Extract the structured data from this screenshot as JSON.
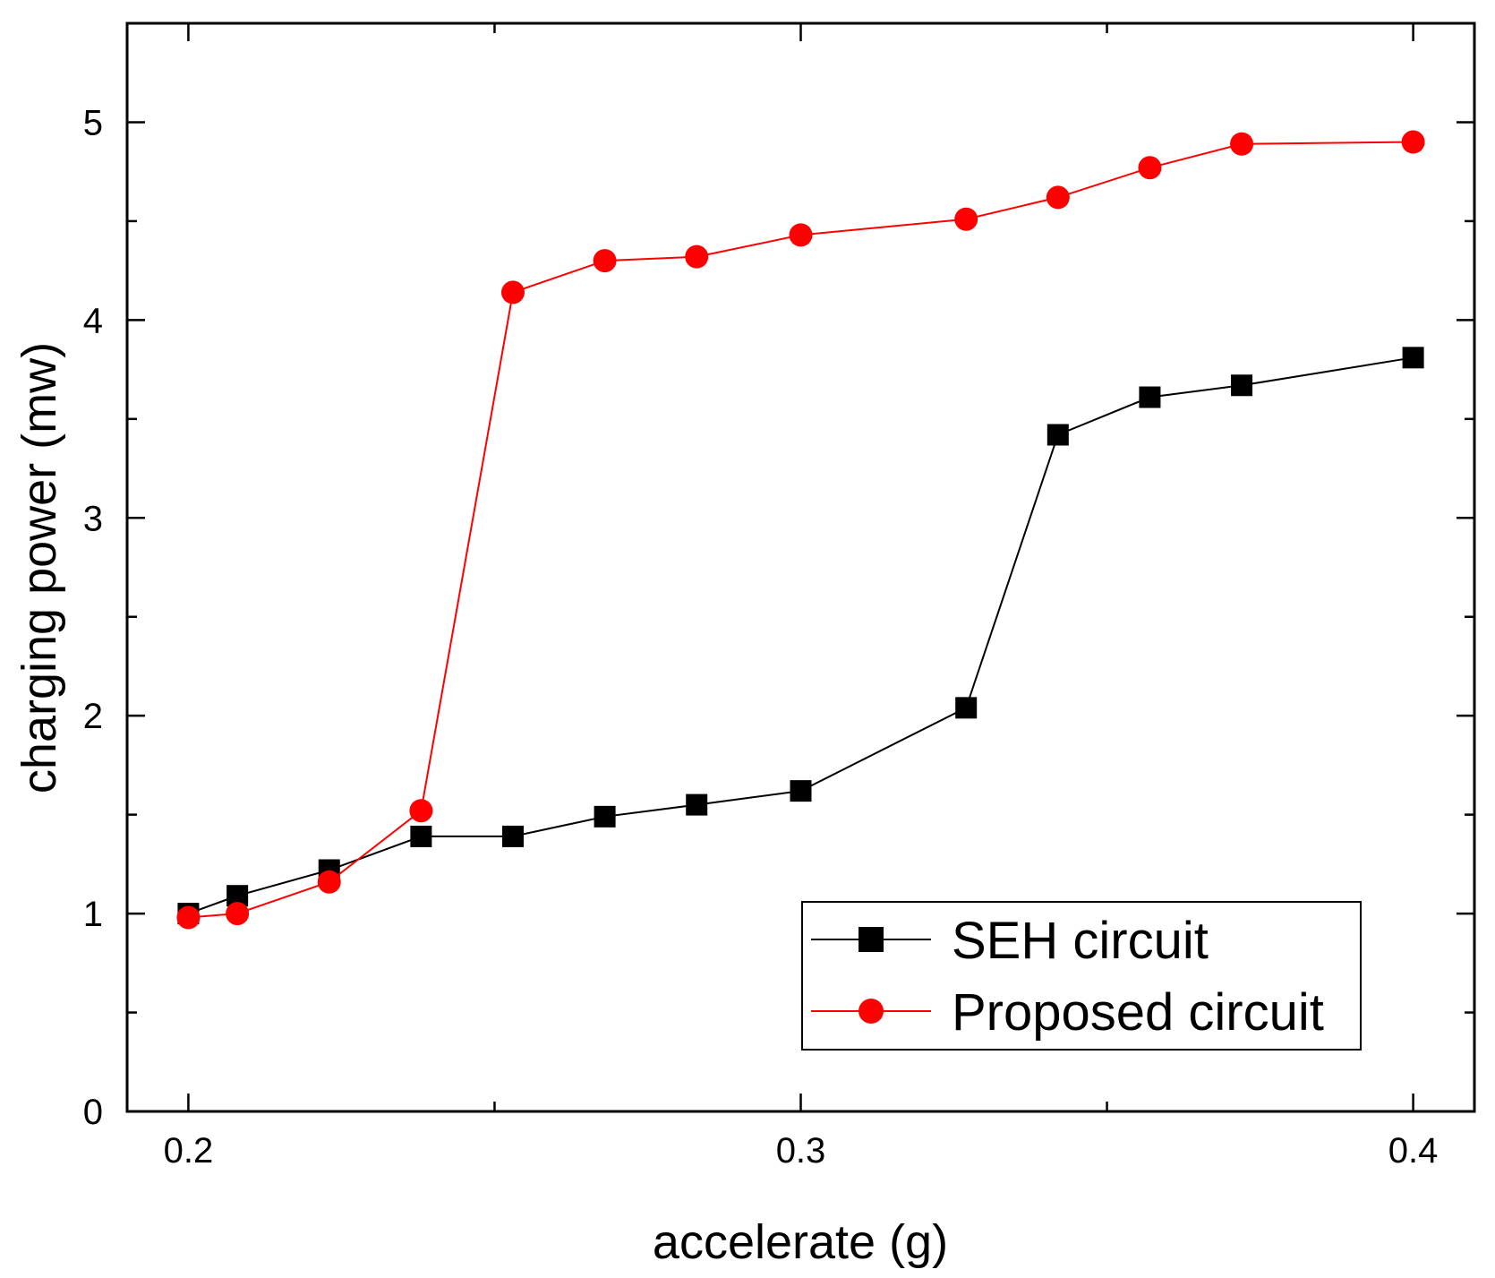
{
  "chart_data": {
    "type": "line",
    "title": "",
    "xlabel": "accelerate (g)",
    "ylabel": "charging power (mw)",
    "xlim": [
      0.19,
      0.41
    ],
    "ylim": [
      0,
      5.5
    ],
    "x_ticks": [
      {
        "value": 0.2,
        "label": "0.2"
      },
      {
        "value": 0.3,
        "label": "0.3"
      },
      {
        "value": 0.4,
        "label": "0.4"
      }
    ],
    "x_minor_ticks": [
      0.25,
      0.35
    ],
    "y_ticks": [
      {
        "value": 0,
        "label": "0"
      },
      {
        "value": 1,
        "label": "1"
      },
      {
        "value": 2,
        "label": "2"
      },
      {
        "value": 3,
        "label": "3"
      },
      {
        "value": 4,
        "label": "4"
      },
      {
        "value": 5,
        "label": "5"
      }
    ],
    "y_minor_ticks": [
      0.5,
      1.5,
      2.5,
      3.5,
      4.5
    ],
    "grid": false,
    "legend_position": "bottom-right",
    "series": [
      {
        "name": "SEH circuit",
        "color": "#000000",
        "marker": "square",
        "x": [
          0.2,
          0.208,
          0.223,
          0.238,
          0.253,
          0.268,
          0.283,
          0.3,
          0.327,
          0.342,
          0.357,
          0.372,
          0.4
        ],
        "y": [
          1.0,
          1.09,
          1.22,
          1.39,
          1.39,
          1.49,
          1.55,
          1.62,
          2.04,
          3.42,
          3.61,
          3.67,
          3.81
        ]
      },
      {
        "name": "Proposed circuit",
        "color": "#ff0000",
        "marker": "circle",
        "x": [
          0.2,
          0.208,
          0.223,
          0.238,
          0.253,
          0.268,
          0.283,
          0.3,
          0.327,
          0.342,
          0.357,
          0.372,
          0.4
        ],
        "y": [
          0.98,
          1.0,
          1.16,
          1.52,
          4.14,
          4.3,
          4.32,
          4.43,
          4.51,
          4.62,
          4.77,
          4.89,
          4.9
        ]
      }
    ]
  }
}
